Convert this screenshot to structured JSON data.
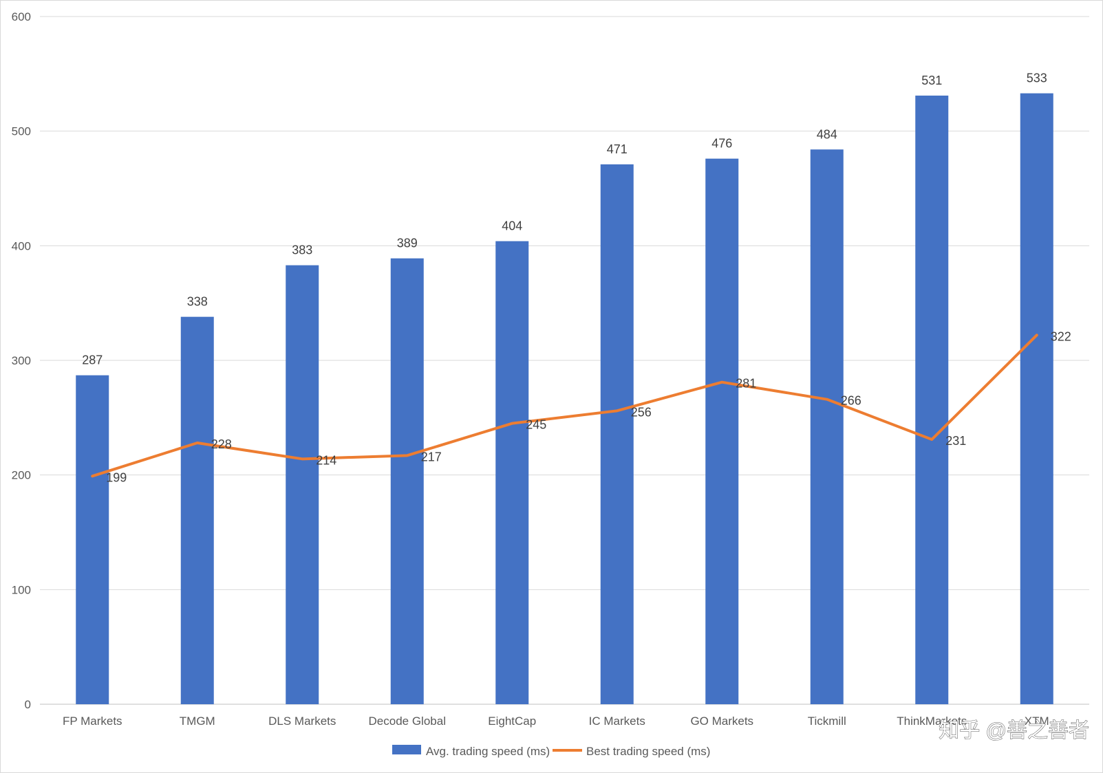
{
  "chart_data": {
    "type": "bar",
    "categories": [
      "FP Markets",
      "TMGM",
      "DLS Markets",
      "Decode Global",
      "EightCap",
      "IC Markets",
      "GO Markets",
      "Tickmill",
      "ThinkMarkets",
      "XTM"
    ],
    "series": [
      {
        "name": "Avg. trading speed (ms)",
        "type": "bar",
        "color": "#4472C4",
        "values": [
          287,
          338,
          383,
          389,
          404,
          471,
          476,
          484,
          531,
          533
        ]
      },
      {
        "name": "Best trading speed (ms)",
        "type": "line",
        "color": "#ED7D31",
        "values": [
          199,
          228,
          214,
          217,
          245,
          256,
          281,
          266,
          231,
          322
        ]
      }
    ],
    "ylim": [
      0,
      600
    ],
    "yticks": [
      0,
      100,
      200,
      300,
      400,
      500,
      600
    ],
    "grid": true,
    "legend": "bottom-center",
    "title": "",
    "xlabel": "",
    "ylabel": ""
  },
  "watermark": {
    "text": "知乎 @善之善者"
  }
}
